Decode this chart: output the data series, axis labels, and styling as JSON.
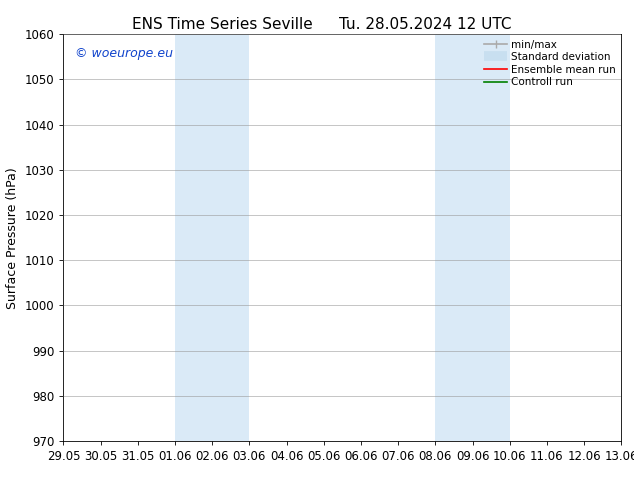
{
  "title_left": "ENS Time Series Seville",
  "title_right": "Tu. 28.05.2024 12 UTC",
  "ylabel": "Surface Pressure (hPa)",
  "ylim": [
    970,
    1060
  ],
  "yticks": [
    970,
    980,
    990,
    1000,
    1010,
    1020,
    1030,
    1040,
    1050,
    1060
  ],
  "x_tick_labels": [
    "29.05",
    "30.05",
    "31.05",
    "01.06",
    "02.06",
    "03.06",
    "04.06",
    "05.06",
    "06.06",
    "07.06",
    "08.06",
    "09.06",
    "10.06",
    "11.06",
    "12.06",
    "13.06"
  ],
  "x_tick_positions": [
    0,
    1,
    2,
    3,
    4,
    5,
    6,
    7,
    8,
    9,
    10,
    11,
    12,
    13,
    14,
    15
  ],
  "shaded_regions": [
    {
      "x_start": 3,
      "x_end": 5,
      "color": "#daeaf7"
    },
    {
      "x_start": 10,
      "x_end": 12,
      "color": "#daeaf7"
    }
  ],
  "watermark_text": "© woeurope.eu",
  "watermark_color": "#1144cc",
  "legend_entries": [
    {
      "label": "min/max",
      "color": "#aaaaaa",
      "linewidth": 1.2
    },
    {
      "label": "Standard deviation",
      "color": "#c8dff0",
      "linewidth": 7
    },
    {
      "label": "Ensemble mean run",
      "color": "red",
      "linewidth": 1.2
    },
    {
      "label": "Controll run",
      "color": "green",
      "linewidth": 1.2
    }
  ],
  "bg_color": "#ffffff",
  "grid_color": "#999999",
  "title_fontsize": 11,
  "label_fontsize": 9,
  "tick_fontsize": 8.5,
  "legend_fontsize": 7.5
}
